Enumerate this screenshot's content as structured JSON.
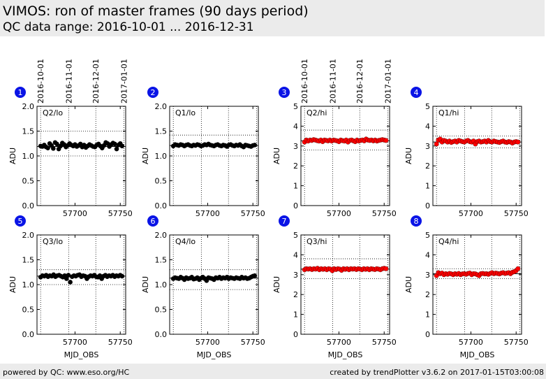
{
  "header": {
    "title": "VIMOS: ron of master frames (90 days period)",
    "subtitle": "QC data range: 2016-10-01 ... 2016-12-31"
  },
  "footer": {
    "left": "powered by QC: www.eso.org/HC",
    "right": "created by trendPlotter v3.6.2 on 2017-01-15T03:00:08"
  },
  "top_dates": [
    {
      "label": "2016-10-01",
      "mjd": 57662
    },
    {
      "label": "2016-11-01",
      "mjd": 57693
    },
    {
      "label": "2016-12-01",
      "mjd": 57723
    },
    {
      "label": "2017-01-01",
      "mjd": 57754
    }
  ],
  "chart_data": [
    {
      "type": "scatter",
      "badge": "1",
      "label": "Q2/lo",
      "ylabel": "ADU",
      "xlabel": "",
      "color": "#000000",
      "xlim": [
        57658,
        57756
      ],
      "ylim": [
        0,
        2.0
      ],
      "yticks": [
        "0.0",
        "0.5",
        "1.0",
        "1.5",
        "2.0"
      ],
      "xticks": [
        "57700",
        "57750"
      ],
      "xtick_values": [
        57700,
        57750
      ],
      "ref_lines": [
        1.19,
        1.0,
        1.5
      ],
      "x_range": [
        57662,
        57752
      ],
      "y_values": [
        1.2,
        1.19,
        1.22,
        1.18,
        1.16,
        1.25,
        1.21,
        1.15,
        1.27,
        1.24,
        1.14,
        1.2,
        1.26,
        1.23,
        1.18,
        1.21,
        1.25,
        1.22,
        1.2,
        1.23,
        1.19,
        1.21,
        1.24,
        1.18,
        1.22,
        1.17,
        1.2,
        1.23,
        1.21,
        1.19,
        1.18,
        1.22,
        1.24,
        1.2,
        1.16,
        1.21,
        1.27,
        1.25,
        1.19,
        1.23,
        1.26,
        1.24,
        1.14,
        1.22,
        1.25,
        1.2
      ]
    },
    {
      "type": "scatter",
      "badge": "2",
      "label": "Q1/lo",
      "ylabel": "ADU",
      "xlabel": "",
      "color": "#000000",
      "xlim": [
        57658,
        57756
      ],
      "ylim": [
        0,
        2.0
      ],
      "yticks": [
        "0.0",
        "0.5",
        "1.0",
        "1.5",
        "2.0"
      ],
      "xticks": [
        "57700",
        "57750"
      ],
      "xtick_values": [
        57700,
        57750
      ],
      "ref_lines": [
        1.21,
        1.0,
        1.42
      ],
      "x_range": [
        57662,
        57752
      ],
      "y_values": [
        1.2,
        1.23,
        1.22,
        1.21,
        1.23,
        1.22,
        1.2,
        1.22,
        1.23,
        1.21,
        1.2,
        1.22,
        1.21,
        1.23,
        1.22,
        1.2,
        1.21,
        1.23,
        1.22,
        1.24,
        1.22,
        1.21,
        1.2,
        1.22,
        1.23,
        1.21,
        1.2,
        1.22,
        1.21,
        1.19,
        1.22,
        1.23,
        1.21,
        1.2,
        1.22,
        1.21,
        1.23,
        1.2,
        1.18,
        1.22,
        1.21,
        1.2,
        1.19,
        1.21,
        1.22
      ]
    },
    {
      "type": "scatter",
      "badge": "3",
      "label": "Q2/hi",
      "ylabel": "ADU",
      "xlabel": "",
      "color": "#ff0000",
      "xlim": [
        57658,
        57756
      ],
      "ylim": [
        0,
        5
      ],
      "yticks": [
        "0",
        "1",
        "2",
        "3",
        "4",
        "5"
      ],
      "xticks": [
        "57700",
        "57750"
      ],
      "xtick_values": [
        57700,
        57750
      ],
      "ref_lines": [
        3.26,
        2.8,
        3.8
      ],
      "x_range": [
        57662,
        57752
      ],
      "y_values": [
        3.2,
        3.3,
        3.25,
        3.3,
        3.28,
        3.32,
        3.3,
        3.27,
        3.25,
        3.3,
        3.22,
        3.3,
        3.28,
        3.26,
        3.3,
        3.25,
        3.3,
        3.28,
        3.26,
        3.22,
        3.3,
        3.27,
        3.25,
        3.3,
        3.2,
        3.28,
        3.3,
        3.26,
        3.22,
        3.3,
        3.25,
        3.28,
        3.3,
        3.26,
        3.35,
        3.3,
        3.28,
        3.3,
        3.26,
        3.3,
        3.25,
        3.28,
        3.3,
        3.32,
        3.3,
        3.28
      ]
    },
    {
      "type": "scatter",
      "badge": "4",
      "label": "Q1/hi",
      "ylabel": "ADU",
      "xlabel": "",
      "color": "#ff0000",
      "xlim": [
        57658,
        57756
      ],
      "ylim": [
        0,
        5
      ],
      "yticks": [
        "0",
        "1",
        "2",
        "3",
        "4",
        "5"
      ],
      "xticks": [
        "57700",
        "57750"
      ],
      "xtick_values": [
        57700,
        57750
      ],
      "ref_lines": [
        3.2,
        2.9,
        3.5
      ],
      "x_range": [
        57662,
        57752
      ],
      "y_values": [
        3.1,
        3.3,
        3.35,
        3.2,
        3.28,
        3.25,
        3.2,
        3.25,
        3.18,
        3.22,
        3.25,
        3.2,
        3.28,
        3.25,
        3.22,
        3.2,
        3.25,
        3.28,
        3.22,
        3.2,
        3.25,
        3.1,
        3.22,
        3.25,
        3.2,
        3.22,
        3.25,
        3.2,
        3.28,
        3.22,
        3.2,
        3.25,
        3.22,
        3.2,
        3.18,
        3.22,
        3.25,
        3.2,
        3.18,
        3.22,
        3.2,
        3.15,
        3.2,
        3.22,
        3.2
      ]
    },
    {
      "type": "scatter",
      "badge": "5",
      "label": "Q3/lo",
      "ylabel": "ADU",
      "xlabel": "MJD_OBS",
      "color": "#000000",
      "xlim": [
        57658,
        57756
      ],
      "ylim": [
        0,
        2.0
      ],
      "yticks": [
        "0.0",
        "0.5",
        "1.0",
        "1.5",
        "2.0"
      ],
      "xticks": [
        "57700",
        "57750"
      ],
      "xtick_values": [
        57700,
        57750
      ],
      "ref_lines": [
        1.17,
        1.0,
        1.3
      ],
      "x_range": [
        57662,
        57752
      ],
      "y_values": [
        1.15,
        1.18,
        1.17,
        1.19,
        1.16,
        1.18,
        1.17,
        1.2,
        1.16,
        1.18,
        1.19,
        1.17,
        1.15,
        1.18,
        1.12,
        1.19,
        1.05,
        1.16,
        1.18,
        1.17,
        1.19,
        1.2,
        1.16,
        1.18,
        1.17,
        1.12,
        1.16,
        1.18,
        1.17,
        1.19,
        1.16,
        1.15,
        1.18,
        1.12,
        1.17,
        1.19,
        1.16,
        1.18,
        1.17,
        1.19,
        1.16,
        1.18,
        1.17,
        1.19,
        1.17
      ]
    },
    {
      "type": "scatter",
      "badge": "6",
      "label": "Q4/lo",
      "ylabel": "ADU",
      "xlabel": "MJD_OBS",
      "color": "#000000",
      "xlim": [
        57658,
        57756
      ],
      "ylim": [
        0,
        2.0
      ],
      "yticks": [
        "0.0",
        "0.5",
        "1.0",
        "1.5",
        "2.0"
      ],
      "xticks": [
        "57700",
        "57750"
      ],
      "xtick_values": [
        57700,
        57750
      ],
      "ref_lines": [
        1.13,
        0.9,
        1.3
      ],
      "x_range": [
        57662,
        57752
      ],
      "y_values": [
        1.12,
        1.14,
        1.13,
        1.12,
        1.15,
        1.13,
        1.1,
        1.14,
        1.12,
        1.13,
        1.15,
        1.11,
        1.12,
        1.14,
        1.1,
        1.13,
        1.15,
        1.12,
        1.08,
        1.14,
        1.13,
        1.12,
        1.1,
        1.14,
        1.13,
        1.15,
        1.12,
        1.14,
        1.13,
        1.15,
        1.12,
        1.14,
        1.13,
        1.12,
        1.14,
        1.13,
        1.12,
        1.15,
        1.13,
        1.14,
        1.12,
        1.13,
        1.15,
        1.17,
        1.18
      ]
    },
    {
      "type": "scatter",
      "badge": "7",
      "label": "Q3/hi",
      "ylabel": "ADU",
      "xlabel": "MJD_OBS",
      "color": "#ff0000",
      "xlim": [
        57658,
        57756
      ],
      "ylim": [
        0,
        5
      ],
      "yticks": [
        "0",
        "1",
        "2",
        "3",
        "4",
        "5"
      ],
      "xticks": [
        "57700",
        "57750"
      ],
      "xtick_values": [
        57700,
        57750
      ],
      "ref_lines": [
        3.28,
        2.8,
        3.8
      ],
      "x_range": [
        57662,
        57752
      ],
      "y_values": [
        3.25,
        3.3,
        3.28,
        3.3,
        3.26,
        3.3,
        3.28,
        3.32,
        3.25,
        3.3,
        3.27,
        3.3,
        3.25,
        3.3,
        3.28,
        3.2,
        3.3,
        3.26,
        3.3,
        3.28,
        3.22,
        3.3,
        3.27,
        3.3,
        3.25,
        3.3,
        3.28,
        3.3,
        3.26,
        3.3,
        3.28,
        3.25,
        3.3,
        3.27,
        3.3,
        3.25,
        3.3,
        3.28,
        3.26,
        3.3,
        3.28,
        3.25,
        3.3,
        3.32,
        3.3
      ]
    },
    {
      "type": "scatter",
      "badge": "8",
      "label": "Q4/hi",
      "ylabel": "ADU",
      "xlabel": "MJD_OBS",
      "color": "#ff0000",
      "xlim": [
        57658,
        57756
      ],
      "ylim": [
        0,
        5
      ],
      "yticks": [
        "0",
        "1",
        "2",
        "3",
        "4",
        "5"
      ],
      "xticks": [
        "57700",
        "57750"
      ],
      "xtick_values": [
        57700,
        57750
      ],
      "ref_lines": [
        3.05,
        2.8,
        3.3
      ],
      "x_range": [
        57662,
        57752
      ],
      "y_values": [
        2.95,
        3.1,
        3.05,
        3.08,
        3.0,
        3.05,
        3.02,
        3.06,
        3.04,
        3.0,
        3.05,
        3.02,
        3.06,
        3.0,
        3.04,
        3.05,
        3.02,
        3.06,
        3.08,
        3.0,
        3.05,
        3.04,
        3.0,
        2.95,
        3.05,
        3.06,
        3.04,
        3.05,
        3.02,
        3.06,
        3.1,
        3.05,
        3.08,
        3.06,
        3.04,
        3.08,
        3.1,
        3.06,
        3.08,
        3.1,
        3.05,
        3.12,
        3.15,
        3.2,
        3.3
      ]
    }
  ]
}
